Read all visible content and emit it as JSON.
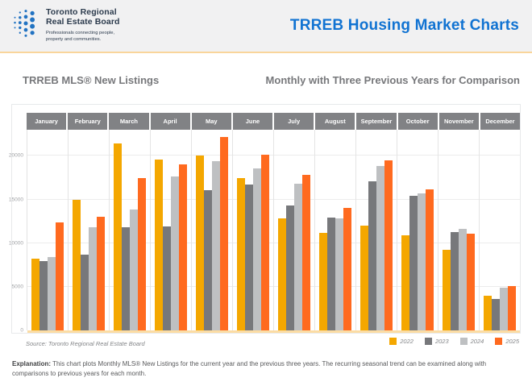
{
  "header": {
    "logo": {
      "line1": "Toronto Regional",
      "line2": "Real Estate Board",
      "tagline1": "Professionals connecting people,",
      "tagline2": "property and communities."
    },
    "title": "TRREB Housing Market Charts"
  },
  "subheader": {
    "left": "TRREB MLS® New Listings",
    "right": "Monthly with Three Previous Years for Comparison"
  },
  "chart_data": {
    "type": "bar",
    "title": "TRREB MLS® New Listings",
    "subtitle": "Monthly with Three Previous Years for Comparison",
    "categories": [
      "January",
      "February",
      "March",
      "April",
      "May",
      "June",
      "July",
      "August",
      "September",
      "October",
      "November",
      "December"
    ],
    "series": [
      {
        "name": "2022",
        "color": "#F4A700",
        "values": [
          8200,
          15000,
          21400,
          19600,
          20000,
          17500,
          12800,
          11200,
          12000,
          10900,
          9200,
          4000
        ]
      },
      {
        "name": "2023",
        "color": "#77787B",
        "values": [
          7900,
          8700,
          11800,
          11900,
          16100,
          16700,
          14300,
          12900,
          17100,
          15400,
          11300,
          3600
        ]
      },
      {
        "name": "2024",
        "color": "#BEC0C2",
        "values": [
          8400,
          11800,
          13900,
          17600,
          19400,
          18600,
          16800,
          12800,
          18800,
          15700,
          11600,
          4900
        ]
      },
      {
        "name": "2025",
        "color": "#FF6A1F",
        "values": [
          12400,
          13000,
          17500,
          19000,
          22200,
          20100,
          17800,
          14000,
          19500,
          16200,
          11100,
          5100
        ]
      }
    ],
    "xlabel": "",
    "ylabel": "",
    "yticks": [
      0,
      5000,
      10000,
      15000,
      20000
    ],
    "ylim": [
      0,
      23000
    ],
    "grid": true,
    "legend_position": "bottom-right"
  },
  "footer": {
    "source": "Source: Toronto Regional Real Estate Board",
    "explanation_label": "Explanation:",
    "explanation_text": " This chart plots Monthly MLS® New Listings for the current year and the previous three years. The recurring seasonal trend can be examined along with comparisons to previous years for each month."
  }
}
